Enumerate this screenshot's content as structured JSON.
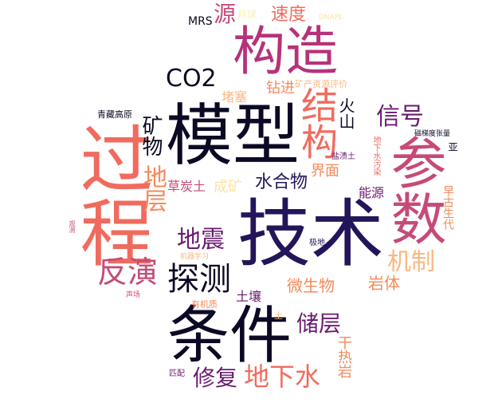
{
  "colors": {
    "black": "#0b0924",
    "indigo": "#24155a",
    "plum": "#6a1b6f",
    "magenta": "#b7327a",
    "rose": "#c64a78",
    "coral": "#f06b5e",
    "orange": "#f58a5c",
    "peach": "#fbb77f",
    "cream": "#fce3a4",
    "paleyellow": "#fbf2a6"
  },
  "words": {
    "w_jishu": "技术",
    "w_moxing": "模型",
    "w_tiaojian": "条件",
    "w_guocheng": "过程",
    "w_gouzao": "构造",
    "w_canshu": "参数",
    "w_jiegou": "结构",
    "w_tance": "探测",
    "w_fanyan": "反演",
    "w_dizhen": "地震",
    "w_dixiashui": "地下水",
    "w_chuceng": "储层",
    "w_xiufu": "修复",
    "w_jizhi": "机制",
    "w_xinhao": "信号",
    "w_co2": "CO2",
    "w_sudu": "速度",
    "w_yuan": "源",
    "w_diceng": "地层",
    "w_kuangwu": "矿物",
    "w_shuihewu": "水合物",
    "w_weishengwu": "微生物",
    "w_yanti": "岩体",
    "w_huoshan": "火山",
    "w_chengkuang": "成矿",
    "w_jiemian": "界面",
    "w_zuanjin": "钻进",
    "w_duse": "堵塞",
    "w_ganreyan": "干热岩",
    "w_nengyuan": "能源",
    "w_caotantu": "草炭土",
    "w_turang": "土壤",
    "w_mrs": "MRS",
    "w_yuexiu": "月球",
    "w_dnapl": "DNAPL",
    "w_kuangchan": "矿产资源评价",
    "w_qingzang": "青藏高原",
    "w_yanzitu": "盐渍土",
    "w_dixiashuiwuran": "地下水污染",
    "w_citidu": "磁梯度张量",
    "w_zaogusheng": "早古生代",
    "w_ya": "亚",
    "w_jidi": "极地",
    "w_youjizhi": "有机质",
    "w_jixiexuexi": "机器学习",
    "w_tu": "土",
    "w_shengchang": "声场",
    "w_pipei": "匹配",
    "w_guance": "观测"
  }
}
